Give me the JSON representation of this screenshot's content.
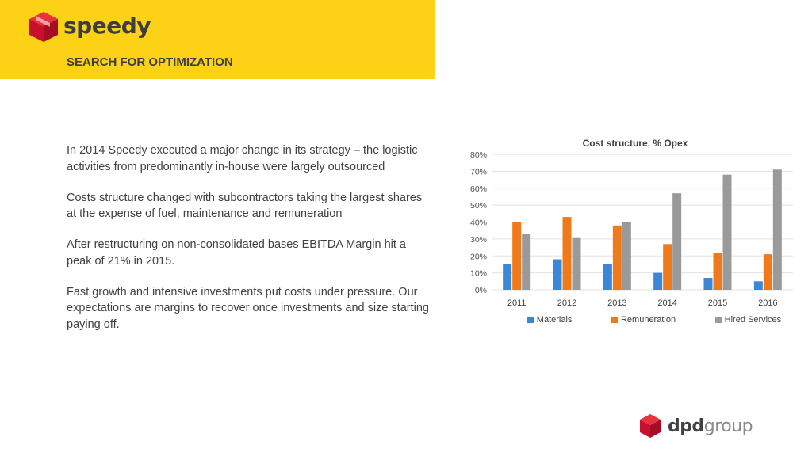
{
  "header": {
    "logo_text": "speedy",
    "section_title": "SEARCH FOR OPTIMIZATION"
  },
  "body": {
    "paragraphs": [
      "In 2014 Speedy executed a major change in its strategy – the logistic activities from predominantly in-house were largely outsourced",
      "Costs structure changed with subcontractors taking the largest shares at the expense of fuel, maintenance and remuneration",
      "After restructuring on non-consolidated bases EBITDA Margin hit a peak of 21% in 2015.",
      "Fast growth and intensive investments put costs under pressure. Our expectations are margins to recover once investments  and size starting paying off."
    ]
  },
  "footer": {
    "logo_bold": "dpd",
    "logo_light": "group"
  },
  "colors": {
    "brand_yellow": "#FCD116",
    "brand_red": "#DC0032"
  },
  "chart_data": {
    "type": "bar",
    "title": "Cost structure, % Opex",
    "categories": [
      "2011",
      "2012",
      "2013",
      "2014",
      "2015",
      "2016"
    ],
    "series": [
      {
        "name": "Materials",
        "color": "#3A87D6",
        "values": [
          15,
          18,
          15,
          10,
          7,
          5
        ]
      },
      {
        "name": "Remuneration",
        "color": "#F07A1A",
        "values": [
          40,
          43,
          38,
          27,
          22,
          21
        ]
      },
      {
        "name": "Hired Services",
        "color": "#9A9A9A",
        "values": [
          33,
          31,
          40,
          57,
          68,
          71
        ]
      }
    ],
    "ylim": [
      0,
      80
    ],
    "yticks": [
      "0%",
      "10%",
      "20%",
      "30%",
      "40%",
      "50%",
      "60%",
      "70%",
      "80%"
    ],
    "grid": true,
    "legend_position": "bottom"
  }
}
